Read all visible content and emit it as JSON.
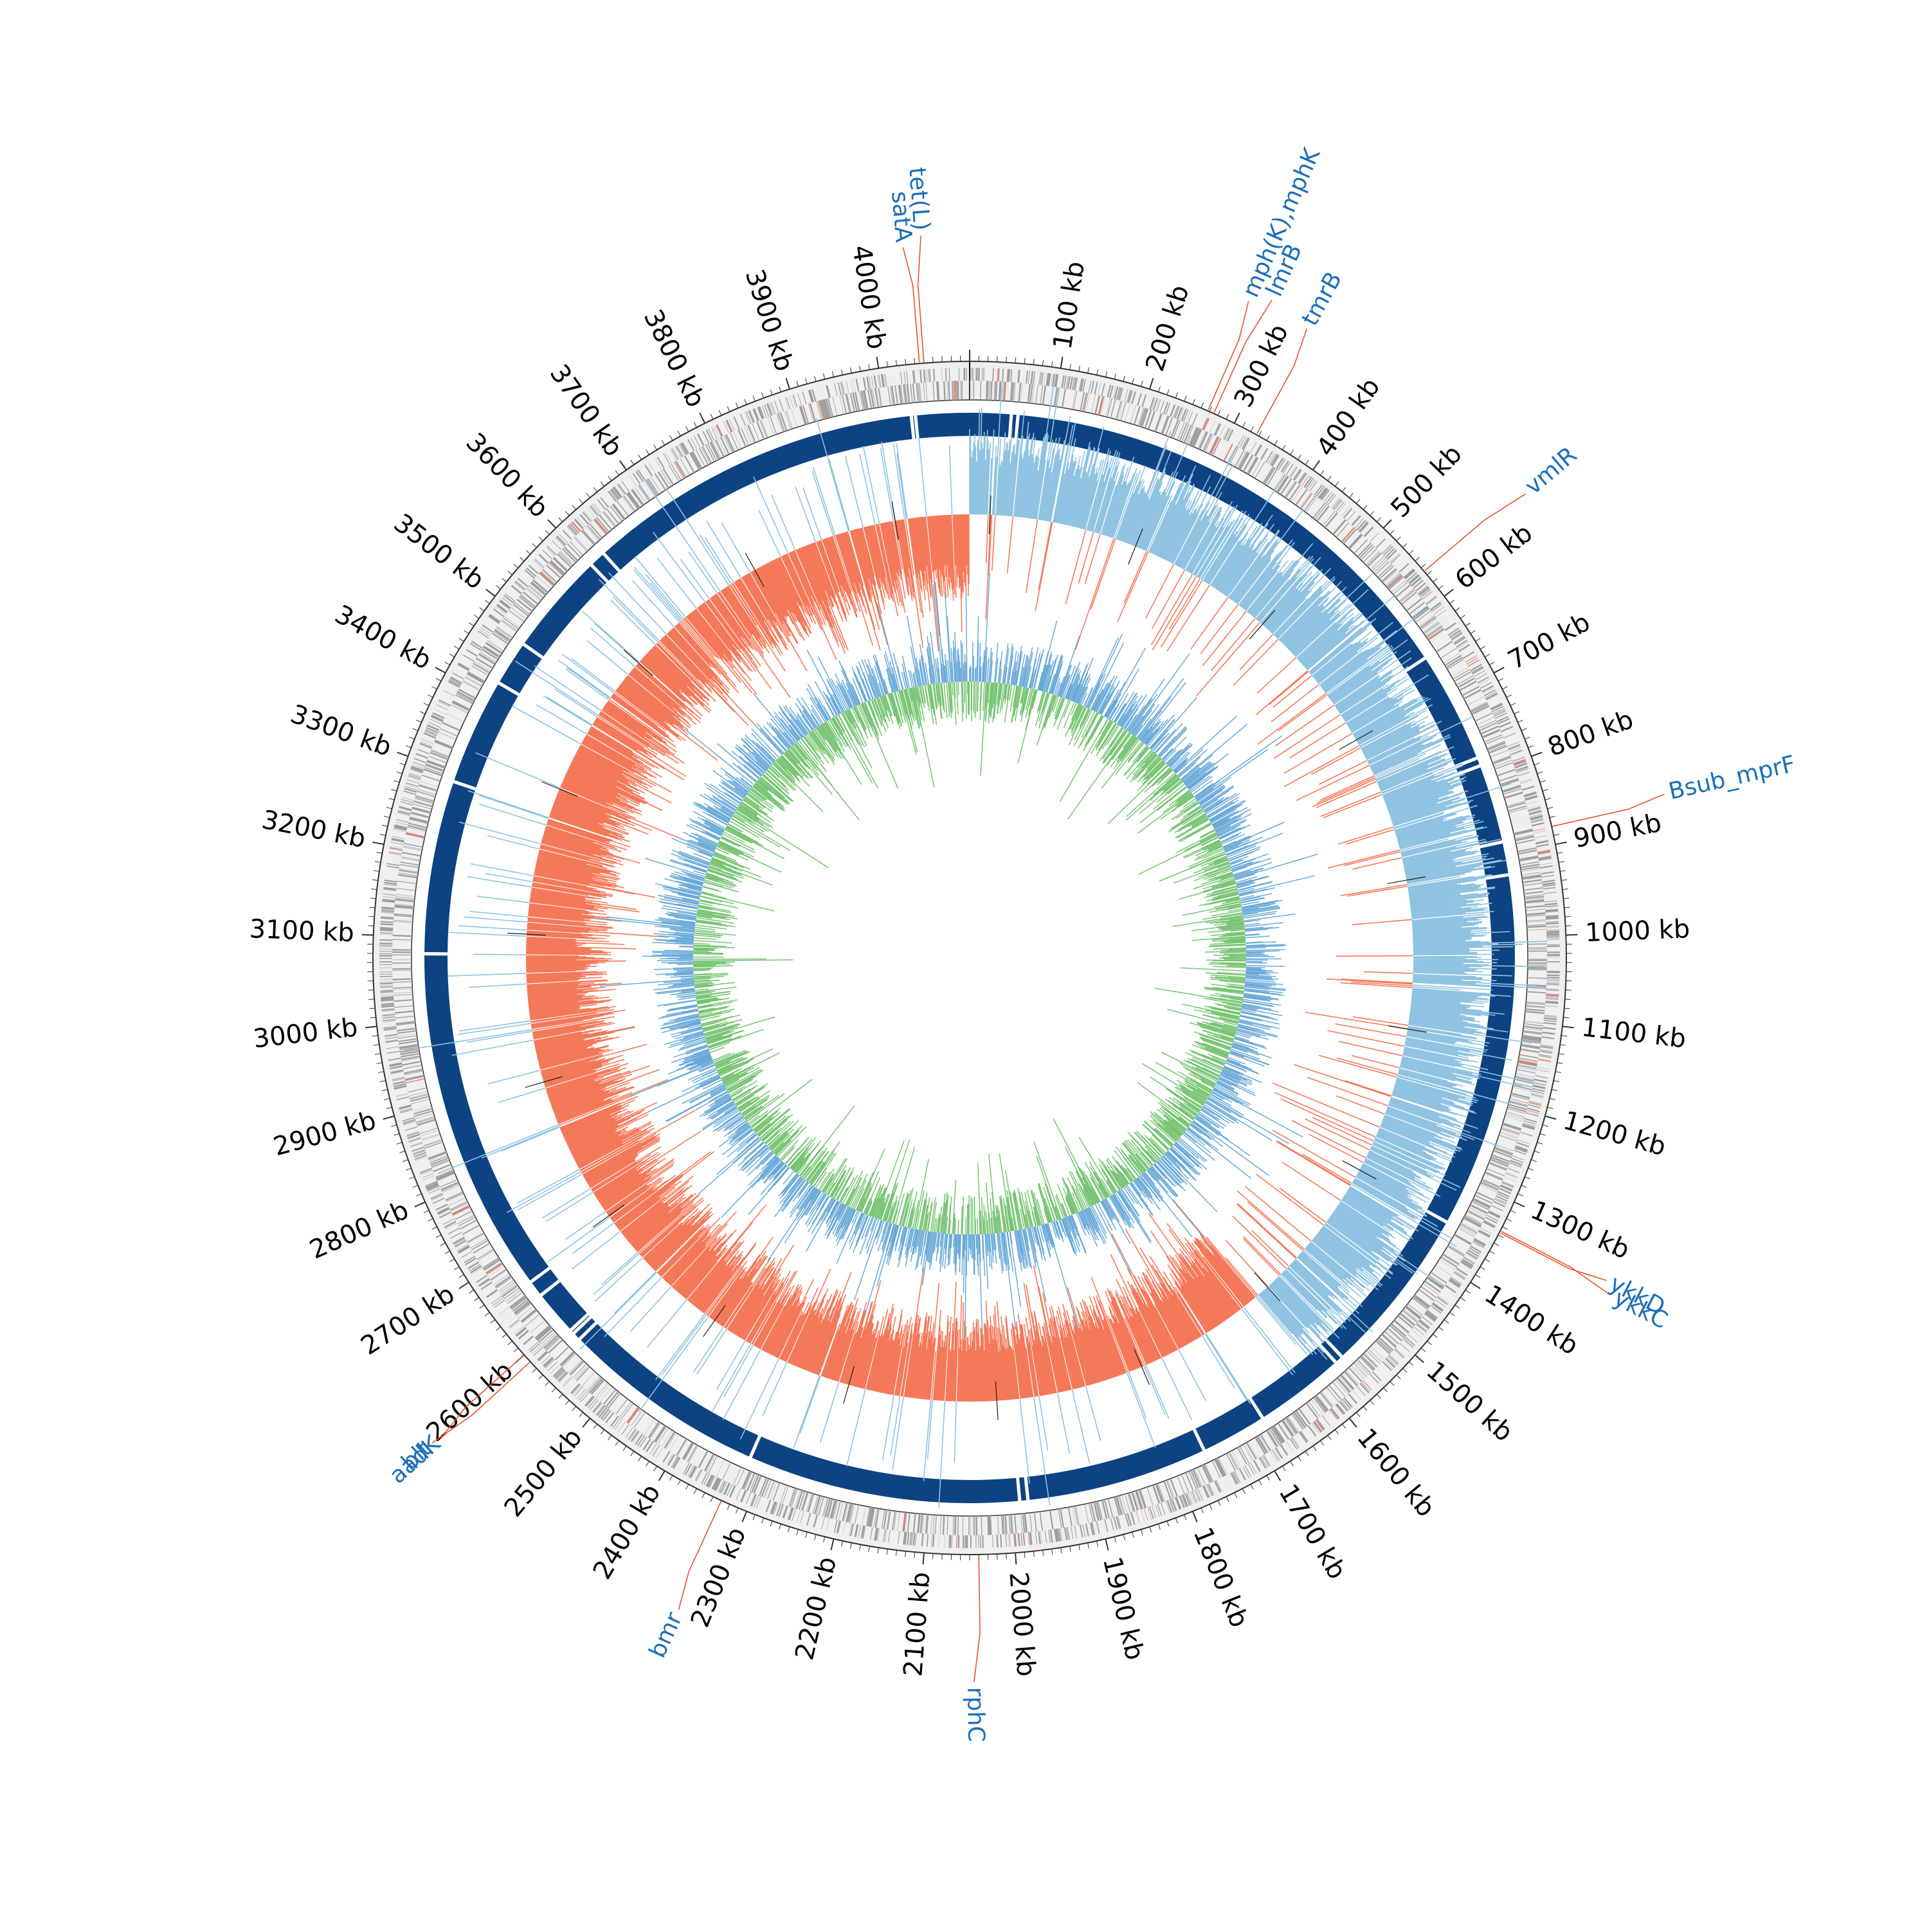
{
  "genome_map": {
    "genome_length_kb": 4100,
    "start_angle": "top",
    "direction": "clockwise",
    "colors": {
      "background": "#ffffff",
      "outer_ring": "#efefef",
      "ring_outline": "#333333",
      "cds_features": "#9e9e9e",
      "highlighted_cds": "#f4795a",
      "contig_blocks": "#0d4382",
      "gc_skew_positive": "#8fc3e1",
      "gc_skew_negative": "#f4795a",
      "gc_content_positive": "#6aaad8",
      "gc_content_negative": "#77c473",
      "annotation_line": "#e8502c",
      "annotation_text": "#1d6fb8",
      "tick_text": "#000000"
    },
    "tick_labels": [
      {
        "kb": 100,
        "label": "100 kb"
      },
      {
        "kb": 200,
        "label": "200 kb"
      },
      {
        "kb": 300,
        "label": "300 kb"
      },
      {
        "kb": 400,
        "label": "400 kb"
      },
      {
        "kb": 500,
        "label": "500 kb"
      },
      {
        "kb": 600,
        "label": "600 kb"
      },
      {
        "kb": 700,
        "label": "700 kb"
      },
      {
        "kb": 800,
        "label": "800 kb"
      },
      {
        "kb": 900,
        "label": "900 kb"
      },
      {
        "kb": 1000,
        "label": "1000 kb"
      },
      {
        "kb": 1100,
        "label": "1100 kb"
      },
      {
        "kb": 1200,
        "label": "1200 kb"
      },
      {
        "kb": 1300,
        "label": "1300 kb"
      },
      {
        "kb": 1400,
        "label": "1400 kb"
      },
      {
        "kb": 1500,
        "label": "1500 kb"
      },
      {
        "kb": 1600,
        "label": "1600 kb"
      },
      {
        "kb": 1700,
        "label": "1700 kb"
      },
      {
        "kb": 1800,
        "label": "1800 kb"
      },
      {
        "kb": 1900,
        "label": "1900 kb"
      },
      {
        "kb": 2000,
        "label": "2000 kb"
      },
      {
        "kb": 2100,
        "label": "2100 kb"
      },
      {
        "kb": 2200,
        "label": "2200 kb"
      },
      {
        "kb": 2300,
        "label": "2300 kb"
      },
      {
        "kb": 2400,
        "label": "2400 kb"
      },
      {
        "kb": 2500,
        "label": "2500 kb"
      },
      {
        "kb": 2600,
        "label": "2600 kb"
      },
      {
        "kb": 2700,
        "label": "2700 kb"
      },
      {
        "kb": 2800,
        "label": "2800 kb"
      },
      {
        "kb": 2900,
        "label": "2900 kb"
      },
      {
        "kb": 3000,
        "label": "3000 kb"
      },
      {
        "kb": 3100,
        "label": "3100 kb"
      },
      {
        "kb": 3200,
        "label": "3200 kb"
      },
      {
        "kb": 3300,
        "label": "3300 kb"
      },
      {
        "kb": 3400,
        "label": "3400 kb"
      },
      {
        "kb": 3500,
        "label": "3500 kb"
      },
      {
        "kb": 3600,
        "label": "3600 kb"
      },
      {
        "kb": 3700,
        "label": "3700 kb"
      },
      {
        "kb": 3800,
        "label": "3800 kb"
      },
      {
        "kb": 3900,
        "label": "3900 kb"
      },
      {
        "kb": 4000,
        "label": "4000 kb"
      }
    ],
    "gene_annotations": [
      {
        "name": "satA",
        "kb": 4045
      },
      {
        "name": "tet(L)",
        "kb": 4050
      },
      {
        "name": "mph(K),mphK",
        "kb": 268
      },
      {
        "name": "lmrB",
        "kb": 275
      },
      {
        "name": "tmrB",
        "kb": 327
      },
      {
        "name": "vmlR",
        "kb": 565
      },
      {
        "name": "Bsub_mprF",
        "kb": 880
      },
      {
        "name": "ykkC",
        "kb": 1335
      },
      {
        "name": "ykkD",
        "kb": 1337
      },
      {
        "name": "rphC",
        "kb": 2040
      },
      {
        "name": "bmr",
        "kb": 2330
      },
      {
        "name": "blt",
        "kb": 2590
      },
      {
        "name": "aadK",
        "kb": 2600
      }
    ],
    "contig_gaps_kb": [
      50,
      58,
      645,
      780,
      790,
      885,
      925,
      1355,
      1560,
      1570,
      1680,
      1760,
      1980,
      1990,
      2320,
      2570,
      2580,
      2585,
      2640,
      2660,
      3080,
      3290,
      3420,
      3475,
      3600,
      3620,
      4030,
      4035
    ]
  }
}
